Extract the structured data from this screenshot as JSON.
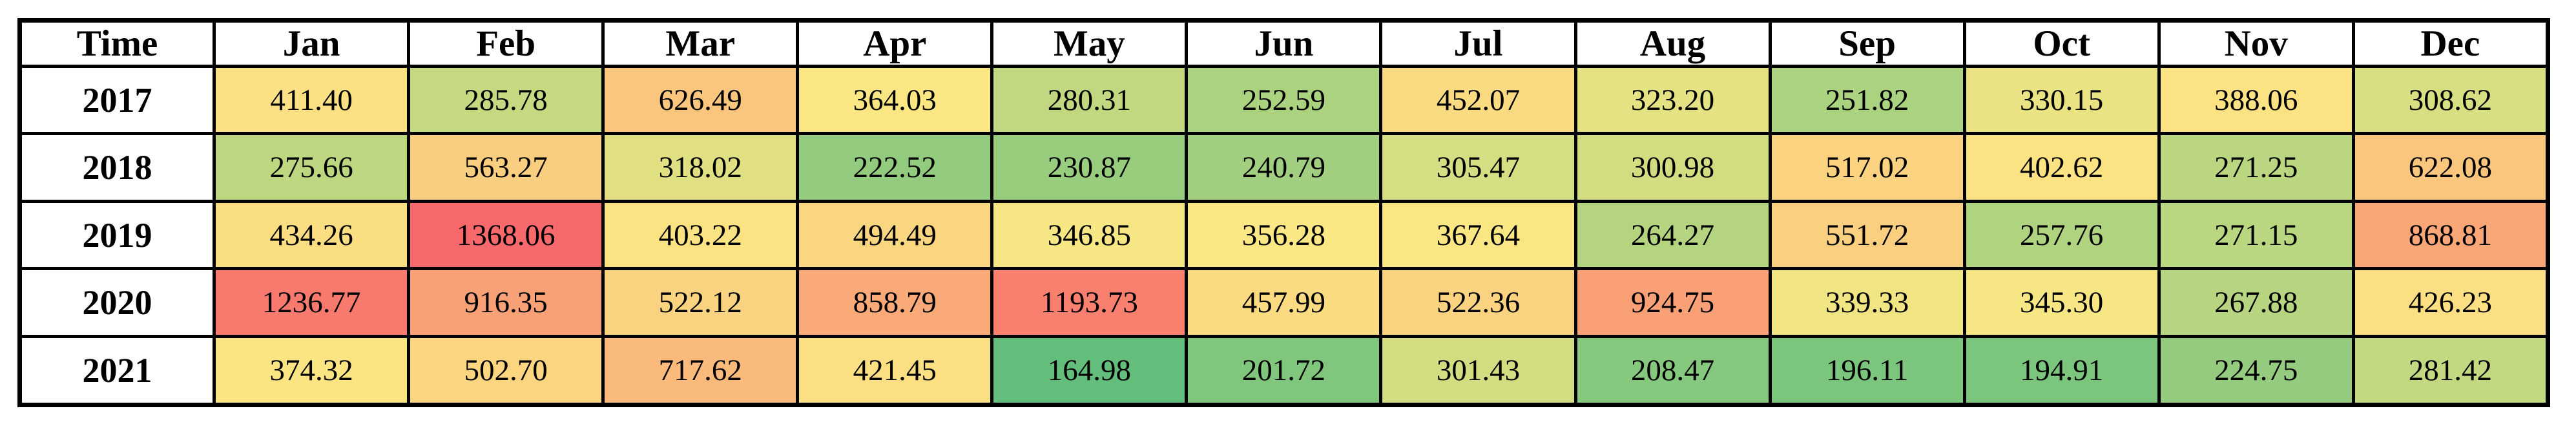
{
  "page": {
    "background_color": "#FFFFFF"
  },
  "table": {
    "corner_label": "Time",
    "border_color": "#000000",
    "header_background": "#FFFFFF",
    "text_color": "#000000"
  },
  "chart_data": {
    "type": "heatmap",
    "title": "",
    "xlabel": "",
    "ylabel": "Time",
    "x_categories": [
      "Jan",
      "Feb",
      "Mar",
      "Apr",
      "May",
      "Jun",
      "Jul",
      "Aug",
      "Sep",
      "Oct",
      "Nov",
      "Dec"
    ],
    "y_categories": [
      "2017",
      "2018",
      "2019",
      "2020",
      "2021"
    ],
    "values": [
      [
        411.4,
        285.78,
        626.49,
        364.03,
        280.31,
        252.59,
        452.07,
        323.2,
        251.82,
        330.15,
        388.06,
        308.62
      ],
      [
        275.66,
        563.27,
        318.02,
        222.52,
        230.87,
        240.79,
        305.47,
        300.98,
        517.02,
        402.62,
        271.25,
        622.08
      ],
      [
        434.26,
        1368.06,
        403.22,
        494.49,
        346.85,
        356.28,
        367.64,
        264.27,
        551.72,
        257.76,
        271.15,
        868.81
      ],
      [
        1236.77,
        916.35,
        522.12,
        858.79,
        1193.73,
        457.99,
        522.36,
        924.75,
        339.33,
        345.3,
        267.88,
        426.23
      ],
      [
        374.32,
        502.7,
        717.62,
        421.45,
        164.98,
        201.72,
        301.43,
        208.47,
        196.11,
        194.91,
        224.75,
        281.42
      ]
    ],
    "value_decimals": 2,
    "grid": true,
    "color_scale": {
      "type": "3-color",
      "mid_rule": "median",
      "min_value": 164.98,
      "mid_value": 351.57,
      "max_value": 1368.06,
      "min_color": "#63BE7B",
      "mid_color": "#FBE884",
      "max_color": "#F8696B"
    }
  }
}
